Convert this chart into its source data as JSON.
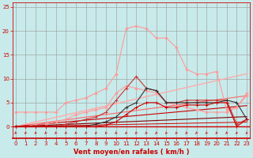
{
  "x": [
    0,
    1,
    2,
    3,
    4,
    5,
    6,
    7,
    8,
    9,
    10,
    11,
    12,
    13,
    14,
    15,
    16,
    17,
    18,
    19,
    20,
    21,
    22,
    23
  ],
  "series": [
    {
      "name": "pink_peak",
      "color": "#ff9999",
      "lw": 0.8,
      "marker": "D",
      "ms": 1.5,
      "y": [
        3,
        3,
        3,
        3,
        3,
        5,
        5.5,
        6,
        7,
        8,
        11,
        20.5,
        21.0,
        20.5,
        18.5,
        18.5,
        16.5,
        12,
        11,
        11,
        11.5,
        3.5,
        4,
        7
      ]
    },
    {
      "name": "pink_mid",
      "color": "#ff9999",
      "lw": 0.8,
      "marker": "D",
      "ms": 1.5,
      "y": [
        0,
        0,
        0.5,
        0.5,
        1,
        1.5,
        2.5,
        3,
        3.5,
        4,
        7,
        8.5,
        8,
        7.5,
        7,
        5,
        4.5,
        4,
        3.5,
        3,
        3,
        3,
        4,
        6.5
      ]
    },
    {
      "name": "red_mid",
      "color": "#cc3333",
      "lw": 0.8,
      "marker": "+",
      "ms": 3,
      "y": [
        0,
        0,
        0,
        0,
        0,
        0.5,
        1,
        1.5,
        2,
        3,
        5.5,
        8,
        10.5,
        8,
        7.5,
        5,
        5,
        5.5,
        5.5,
        5.5,
        5.5,
        5.5,
        0.5,
        1.5
      ]
    },
    {
      "name": "dark_peak",
      "color": "#333333",
      "lw": 0.8,
      "marker": "+",
      "ms": 3,
      "y": [
        0,
        0,
        0,
        0,
        0,
        0,
        0,
        0,
        0.5,
        1,
        2,
        4,
        5,
        8,
        7.5,
        5,
        5,
        5,
        5,
        5,
        5,
        5.5,
        5,
        1.5
      ]
    },
    {
      "name": "red_low",
      "color": "#cc0000",
      "lw": 0.8,
      "marker": "+",
      "ms": 2.5,
      "y": [
        0,
        0,
        0,
        0,
        0,
        0,
        0,
        0,
        0,
        0.3,
        1,
        2.5,
        4,
        5,
        5,
        4,
        4,
        4.5,
        4.5,
        4.5,
        5,
        5,
        0,
        1.5
      ]
    },
    {
      "name": "diag_pink",
      "color": "#ffaaaa",
      "lw": 1.0,
      "marker": null,
      "ms": 0,
      "y": [
        0,
        0.48,
        0.96,
        1.44,
        1.92,
        2.4,
        2.88,
        3.36,
        3.84,
        4.32,
        4.8,
        5.28,
        5.76,
        6.24,
        6.72,
        7.2,
        7.68,
        8.16,
        8.64,
        9.12,
        9.6,
        10.08,
        10.56,
        11.04
      ]
    },
    {
      "name": "diag_red1",
      "color": "#ff6666",
      "lw": 0.8,
      "marker": null,
      "ms": 0,
      "y": [
        0,
        0.28,
        0.56,
        0.84,
        1.12,
        1.4,
        1.68,
        1.96,
        2.24,
        2.52,
        2.8,
        3.08,
        3.36,
        3.64,
        3.92,
        4.2,
        4.48,
        4.76,
        5.04,
        5.32,
        5.6,
        5.88,
        6.16,
        6.44
      ]
    },
    {
      "name": "diag_red2",
      "color": "#cc0000",
      "lw": 0.8,
      "marker": null,
      "ms": 0,
      "y": [
        0,
        0.19,
        0.38,
        0.57,
        0.76,
        0.95,
        1.14,
        1.33,
        1.52,
        1.71,
        1.9,
        2.09,
        2.28,
        2.47,
        2.66,
        2.85,
        3.04,
        3.23,
        3.42,
        3.61,
        3.8,
        3.99,
        4.18,
        4.37
      ]
    },
    {
      "name": "diag_darkred",
      "color": "#880000",
      "lw": 0.8,
      "marker": null,
      "ms": 0,
      "y": [
        0,
        0.09,
        0.18,
        0.27,
        0.36,
        0.45,
        0.54,
        0.63,
        0.72,
        0.81,
        0.9,
        0.99,
        1.08,
        1.17,
        1.26,
        1.35,
        1.44,
        1.53,
        1.62,
        1.71,
        1.8,
        1.89,
        1.98,
        2.07
      ]
    },
    {
      "name": "diag_flat",
      "color": "#cc0000",
      "lw": 0.7,
      "marker": null,
      "ms": 0,
      "y": [
        0,
        0.04,
        0.08,
        0.12,
        0.16,
        0.2,
        0.24,
        0.28,
        0.32,
        0.36,
        0.4,
        0.44,
        0.48,
        0.52,
        0.56,
        0.6,
        0.64,
        0.68,
        0.72,
        0.76,
        0.8,
        0.84,
        0.88,
        0.92
      ]
    }
  ],
  "xlim": [
    -0.3,
    23.3
  ],
  "ylim": [
    -2.5,
    26
  ],
  "yticks": [
    0,
    5,
    10,
    15,
    20,
    25
  ],
  "xticks": [
    0,
    1,
    2,
    3,
    4,
    5,
    6,
    7,
    8,
    9,
    10,
    11,
    12,
    13,
    14,
    15,
    16,
    17,
    18,
    19,
    20,
    21,
    22,
    23
  ],
  "xlabel": "Vent moyen/en rafales ( km/h )",
  "xlabel_color": "#cc0000",
  "xlabel_fontsize": 6,
  "tick_fontsize": 5,
  "tick_color": "#cc0000",
  "grid_color": "#999999",
  "bg_color": "#c8eaea",
  "hline_color": "#cc0000",
  "arrow_color": "#cc0000"
}
